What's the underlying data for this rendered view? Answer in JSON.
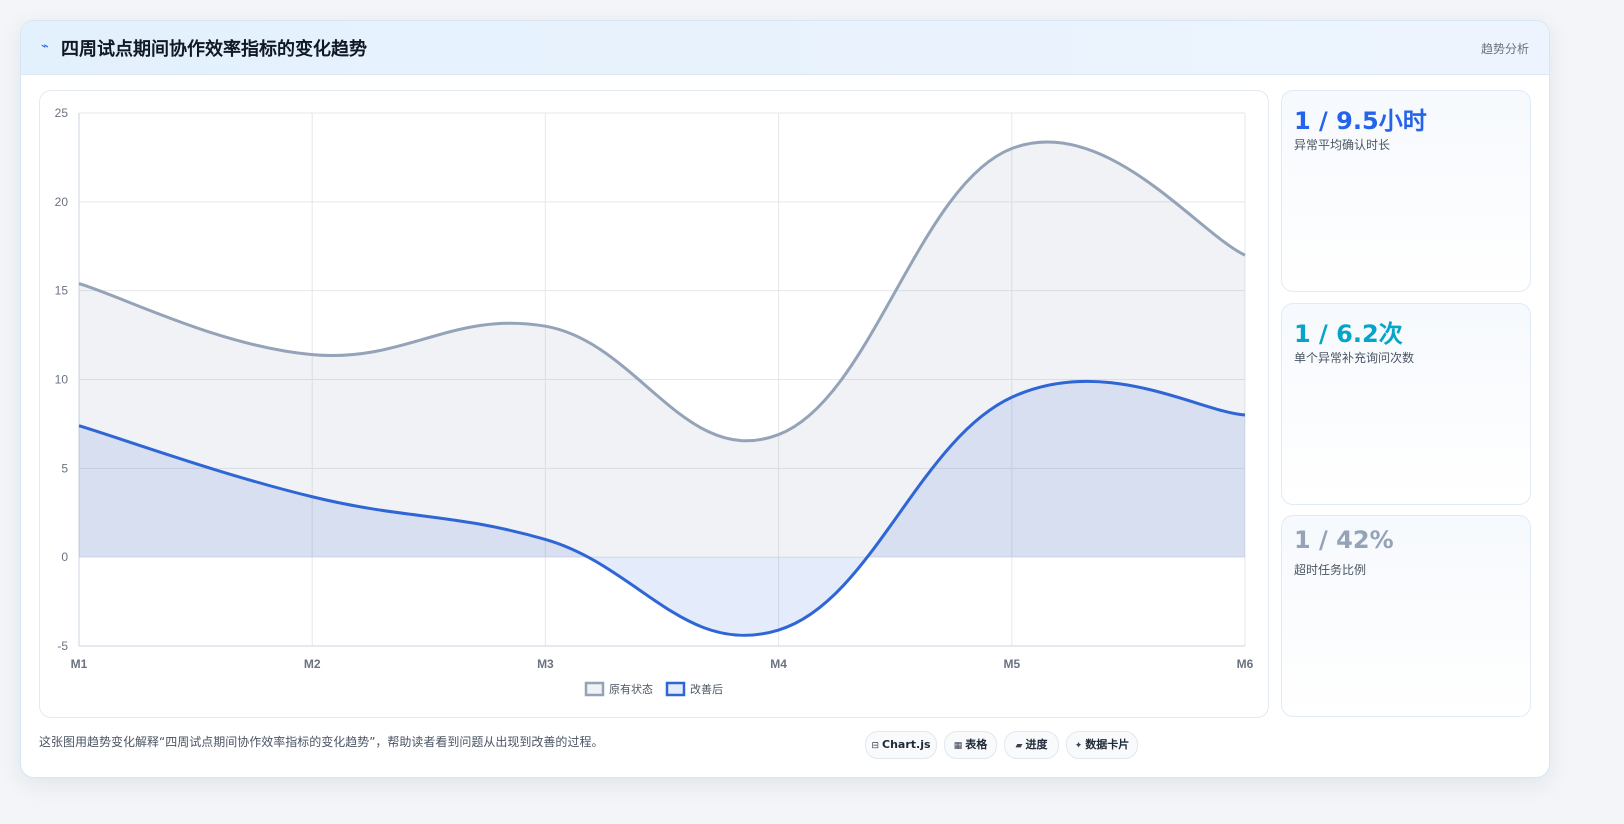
{
  "header": {
    "icon": "lightning-icon",
    "title": "四周试点期间协作效率指标的变化趋势",
    "tag": "趋势分析"
  },
  "chart_data": {
    "type": "area",
    "categories": [
      "M1",
      "M2",
      "M3",
      "M4",
      "M5",
      "M6"
    ],
    "series": [
      {
        "name": "原有状态",
        "values": [
          15.4,
          11.4,
          13.0,
          6.9,
          23.0,
          17.0
        ],
        "color": "#94a3b8",
        "fill": "rgba(148,163,184,0.14)"
      },
      {
        "name": "改善后",
        "values": [
          7.4,
          3.4,
          1.0,
          -4.1,
          9.0,
          8.0
        ],
        "color": "#2f66d6",
        "fill": "rgba(47,102,214,0.13)"
      }
    ],
    "ylim": [
      -5,
      25
    ],
    "yticks": [
      -5,
      0,
      5,
      10,
      15,
      20,
      25
    ],
    "xlabel": "",
    "ylabel": "",
    "grid": true,
    "legend": "bottom-center"
  },
  "stats": [
    {
      "value": "1 / 9.5小时",
      "label": "异常平均确认时长",
      "color": "#2563eb"
    },
    {
      "value": "1 / 6.2次",
      "label": "单个异常补充询问次数",
      "color": "#06a5c7"
    },
    {
      "value": "1 / 42%",
      "label": "超时任务比例",
      "color": "#94a3b8"
    }
  ],
  "caption": "这张图用趋势变化解释“四周试点期间协作效率指标的变化趋势”，帮助读者看到问题从出现到改善的过程。",
  "pills": [
    {
      "icon": "chart-icon",
      "glyph": "⊟",
      "label": "Chart.js"
    },
    {
      "icon": "table-icon",
      "glyph": "▦",
      "label": "表格"
    },
    {
      "icon": "progress-icon",
      "glyph": "▰",
      "label": "进度"
    },
    {
      "icon": "sparkle-icon",
      "glyph": "✦",
      "label": "数据卡片"
    }
  ]
}
